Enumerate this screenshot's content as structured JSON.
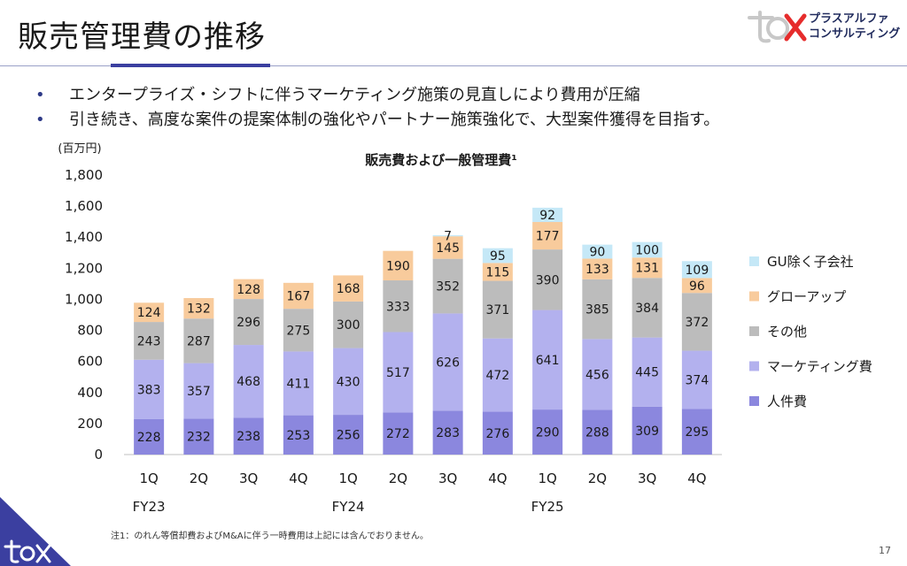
{
  "page": {
    "title": "販売管理費の推移",
    "brand_line1": "プラスアルファ",
    "brand_line2": "コンサルティング",
    "bullets": [
      "エンタープライズ・シフトに伴うマーケティング施策の見直しにより費用が圧縮",
      "引き続き、高度な案件の提案体制の強化やパートナー施策強化で、大型案件獲得を目指す。"
    ],
    "footnote": "注1：のれん等償却費およびM&Aに伴う一時費用は上記には含んでおりません。",
    "page_number": "17"
  },
  "chart_data": {
    "type": "bar",
    "stacked": true,
    "title": "販売費および一般管理費¹",
    "unit_label": "(百万円)",
    "ylim": [
      0,
      1800
    ],
    "yticks": [
      0,
      200,
      400,
      600,
      800,
      1000,
      1200,
      1400,
      1600,
      1800
    ],
    "ytick_labels": [
      "0",
      "200",
      "400",
      "600",
      "800",
      "1,000",
      "1,200",
      "1,400",
      "1,600",
      "1,800"
    ],
    "categories": [
      "1Q",
      "2Q",
      "3Q",
      "4Q",
      "1Q",
      "2Q",
      "3Q",
      "4Q",
      "1Q",
      "2Q",
      "3Q",
      "4Q"
    ],
    "fiscal_years": [
      "FY23",
      "FY24",
      "FY25"
    ],
    "legend_position": "right",
    "series": [
      {
        "name": "人件費",
        "color": "#8b87de",
        "values": [
          228,
          232,
          238,
          253,
          256,
          272,
          283,
          276,
          290,
          288,
          309,
          295
        ]
      },
      {
        "name": "マーケティング費",
        "color": "#b3b1ee",
        "values": [
          383,
          357,
          468,
          411,
          430,
          517,
          626,
          472,
          641,
          456,
          445,
          374
        ]
      },
      {
        "name": "その他",
        "color": "#bcbcbc",
        "values": [
          243,
          287,
          296,
          275,
          300,
          333,
          352,
          371,
          390,
          385,
          384,
          372
        ]
      },
      {
        "name": "グローアップ",
        "color": "#f8cb9c",
        "values": [
          124,
          132,
          128,
          167,
          168,
          190,
          145,
          115,
          177,
          133,
          131,
          96
        ]
      },
      {
        "name": "GU除く子会社",
        "color": "#c5e8f7",
        "values": [
          null,
          null,
          null,
          null,
          null,
          null,
          7,
          95,
          92,
          90,
          100,
          109
        ]
      }
    ]
  }
}
